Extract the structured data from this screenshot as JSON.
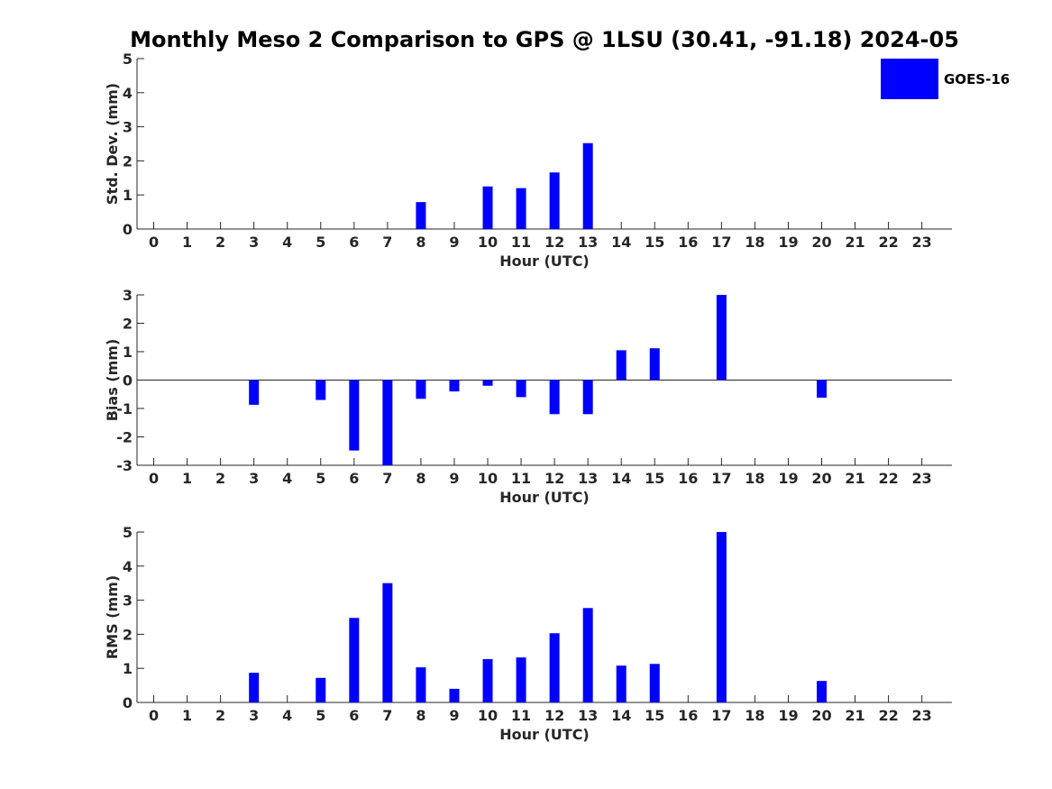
{
  "figure": {
    "title": "Monthly Meso 2 Comparison to GPS @ 1LSU (30.41, -91.18) 2024-05",
    "legend": {
      "label": "GOES-16",
      "color": "#0000ff",
      "placement": "top-right"
    }
  },
  "chart_data": [
    {
      "type": "bar",
      "title": "Monthly Meso 2 Comparison to GPS @ 1LSU (30.41, -91.18) 2024-05",
      "xlabel": "Hour (UTC)",
      "ylabel": "Std. Dev. (mm)",
      "ylim": [
        0,
        5
      ],
      "yticks": [
        0,
        1,
        2,
        3,
        4,
        5
      ],
      "xlim": [
        -0.5,
        23.9
      ],
      "categories": [
        "0",
        "1",
        "2",
        "3",
        "4",
        "5",
        "6",
        "7",
        "8",
        "9",
        "10",
        "11",
        "12",
        "13",
        "14",
        "15",
        "16",
        "17",
        "18",
        "19",
        "20",
        "21",
        "22",
        "23"
      ],
      "series": [
        {
          "name": "GOES-16",
          "color": "#0000ff",
          "values": [
            null,
            null,
            null,
            null,
            null,
            null,
            null,
            null,
            0.79,
            null,
            1.25,
            1.2,
            1.66,
            2.52,
            null,
            null,
            null,
            null,
            null,
            null,
            null,
            null,
            null,
            null
          ]
        }
      ],
      "grid": false
    },
    {
      "type": "bar",
      "xlabel": "Hour (UTC)",
      "ylabel": "Bias (mm)",
      "ylim": [
        -3,
        3
      ],
      "yticks": [
        -3,
        -2,
        -1,
        0,
        1,
        2,
        3
      ],
      "xlim": [
        -0.5,
        23.9
      ],
      "zero_line": true,
      "categories": [
        "0",
        "1",
        "2",
        "3",
        "4",
        "5",
        "6",
        "7",
        "8",
        "9",
        "10",
        "11",
        "12",
        "13",
        "14",
        "15",
        "16",
        "17",
        "18",
        "19",
        "20",
        "21",
        "22",
        "23"
      ],
      "series": [
        {
          "name": "GOES-16",
          "color": "#0000ff",
          "values": [
            null,
            null,
            null,
            -0.87,
            null,
            -0.7,
            -2.48,
            -3.0,
            -0.66,
            -0.4,
            -0.2,
            -0.6,
            -1.2,
            -1.2,
            1.05,
            1.12,
            null,
            3.0,
            null,
            null,
            -0.62,
            null,
            null,
            null
          ]
        }
      ],
      "grid": false
    },
    {
      "type": "bar",
      "xlabel": "Hour (UTC)",
      "ylabel": "RMS (mm)",
      "ylim": [
        0,
        5
      ],
      "yticks": [
        0,
        1,
        2,
        3,
        4,
        5
      ],
      "xlim": [
        -0.5,
        23.9
      ],
      "categories": [
        "0",
        "1",
        "2",
        "3",
        "4",
        "5",
        "6",
        "7",
        "8",
        "9",
        "10",
        "11",
        "12",
        "13",
        "14",
        "15",
        "16",
        "17",
        "18",
        "19",
        "20",
        "21",
        "22",
        "23"
      ],
      "series": [
        {
          "name": "GOES-16",
          "color": "#0000ff",
          "values": [
            null,
            null,
            null,
            0.87,
            null,
            0.72,
            2.48,
            3.5,
            1.03,
            0.4,
            1.27,
            1.32,
            2.03,
            2.77,
            1.08,
            1.13,
            null,
            5.0,
            null,
            null,
            0.63,
            null,
            null,
            null
          ]
        }
      ],
      "grid": false
    }
  ]
}
